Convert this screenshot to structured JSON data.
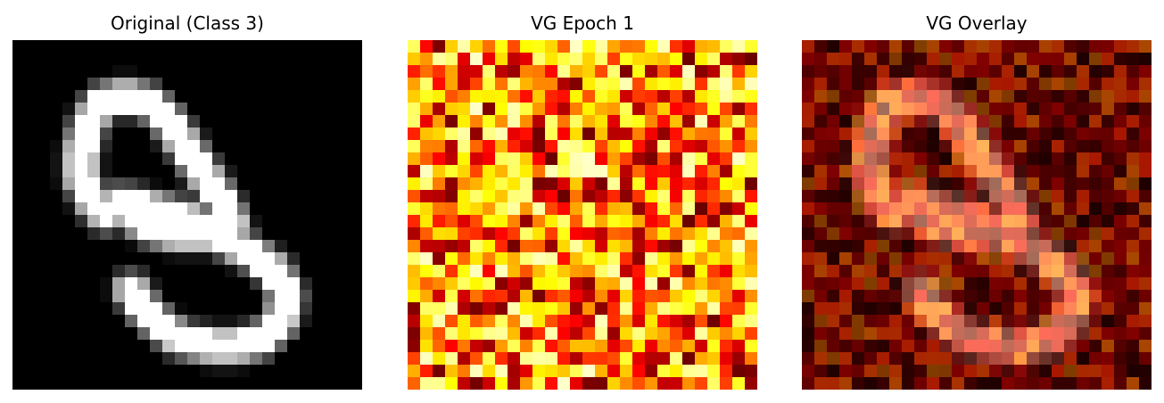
{
  "chart_data": [
    {
      "type": "heatmap",
      "title": "Original (Class 3)",
      "colormap": "gray",
      "grid_size": [
        28,
        28
      ],
      "axes_visible": false
    },
    {
      "type": "heatmap",
      "title": "VG Epoch 1",
      "colormap": "hot",
      "grid_size": [
        28,
        28
      ],
      "axes_visible": false
    },
    {
      "type": "heatmap",
      "title": "VG Overlay",
      "colormap": "hot (blended with original)",
      "grid_size": [
        28,
        28
      ],
      "axes_visible": false
    }
  ]
}
